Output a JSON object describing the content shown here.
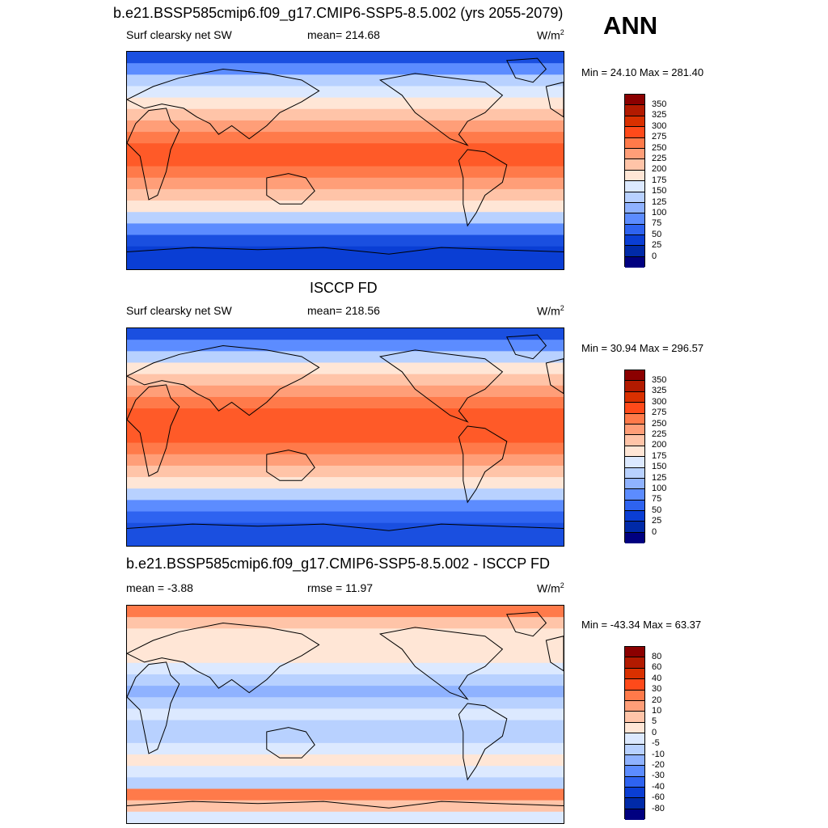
{
  "header": {
    "title": "b.e21.BSSP585cmip6.f09_g17.CMIP6-SSP5-8.5.002 (yrs 2055-2079)",
    "season": "ANN"
  },
  "panels": [
    {
      "top_title": "",
      "left_label": "Surf clearsky net SW",
      "center_label": "mean= 214.68",
      "units": "W/m",
      "units_sup": "2",
      "minmax": "Min =  24.10 Max = 281.40",
      "levels": [
        "350",
        "325",
        "300",
        "275",
        "250",
        "225",
        "200",
        "175",
        "150",
        "125",
        "100",
        "75",
        "50",
        "25",
        "0"
      ],
      "colors": [
        "#8b0000",
        "#b21a00",
        "#d93000",
        "#ff4a1a",
        "#ff7a4a",
        "#ff9e78",
        "#ffc4a8",
        "#ffe6d6",
        "#dce9ff",
        "#b8d1ff",
        "#8fb2ff",
        "#5c8cff",
        "#2e63f0",
        "#0a3ed4",
        "#002aa8",
        "#000080"
      ]
    },
    {
      "top_title": "ISCCP FD",
      "left_label": "Surf clearsky net SW",
      "center_label": "mean= 218.56",
      "units": "W/m",
      "units_sup": "2",
      "minmax": "Min =  30.94 Max = 296.57",
      "levels": [
        "350",
        "325",
        "300",
        "275",
        "250",
        "225",
        "200",
        "175",
        "150",
        "125",
        "100",
        "75",
        "50",
        "25",
        "0"
      ],
      "colors": [
        "#8b0000",
        "#b21a00",
        "#d93000",
        "#ff4a1a",
        "#ff7a4a",
        "#ff9e78",
        "#ffc4a8",
        "#ffe6d6",
        "#dce9ff",
        "#b8d1ff",
        "#8fb2ff",
        "#5c8cff",
        "#2e63f0",
        "#0a3ed4",
        "#002aa8",
        "#000080"
      ]
    },
    {
      "top_title": "b.e21.BSSP585cmip6.f09_g17.CMIP6-SSP5-8.5.002 - ISCCP FD",
      "left_label": "mean =  -3.88",
      "center_label": "rmse =  11.97",
      "units": "W/m",
      "units_sup": "2",
      "minmax": "Min = -43.34 Max =  63.37",
      "levels": [
        "80",
        "60",
        "40",
        "30",
        "20",
        "10",
        "5",
        "0",
        "-5",
        "-10",
        "-20",
        "-30",
        "-40",
        "-60",
        "-80"
      ],
      "colors": [
        "#8b0000",
        "#b21a00",
        "#d93000",
        "#ff4a1a",
        "#ff7a4a",
        "#ff9e78",
        "#ffc4a8",
        "#ffe6d6",
        "#dce9ff",
        "#b8d1ff",
        "#8fb2ff",
        "#5c8cff",
        "#2e63f0",
        "#0a3ed4",
        "#002aa8",
        "#000080"
      ]
    }
  ],
  "map_bands": [
    {
      "bands": [
        "#1a4fe0",
        "#5c8cff",
        "#b8d1ff",
        "#dce9ff",
        "#ffe6d6",
        "#ffc4a8",
        "#ff9e78",
        "#ff7a4a",
        "#ff5a28",
        "#ff5a28",
        "#ff7a4a",
        "#ff9e78",
        "#ffc4a8",
        "#ffe6d6",
        "#b8d1ff",
        "#5c8cff",
        "#1a4fe0",
        "#0a3ed4",
        "#0a3ed4"
      ]
    },
    {
      "bands": [
        "#1a4fe0",
        "#5c8cff",
        "#b8d1ff",
        "#ffe6d6",
        "#ffc4a8",
        "#ff9e78",
        "#ff7a4a",
        "#ff5a28",
        "#ff5a28",
        "#ff5a28",
        "#ff7a4a",
        "#ff9e78",
        "#ffc4a8",
        "#ffe6d6",
        "#b8d1ff",
        "#5c8cff",
        "#2e63f0",
        "#1a4fe0",
        "#1a4fe0"
      ]
    },
    {
      "bands": [
        "#ff7a4a",
        "#ffc4a8",
        "#ffe6d6",
        "#ffe6d6",
        "#ffe6d6",
        "#dce9ff",
        "#b8d1ff",
        "#8fb2ff",
        "#b8d1ff",
        "#dce9ff",
        "#b8d1ff",
        "#b8d1ff",
        "#dce9ff",
        "#ffe6d6",
        "#dce9ff",
        "#b8d1ff",
        "#ff7a4a",
        "#ffc4a8",
        "#dce9ff"
      ]
    }
  ]
}
